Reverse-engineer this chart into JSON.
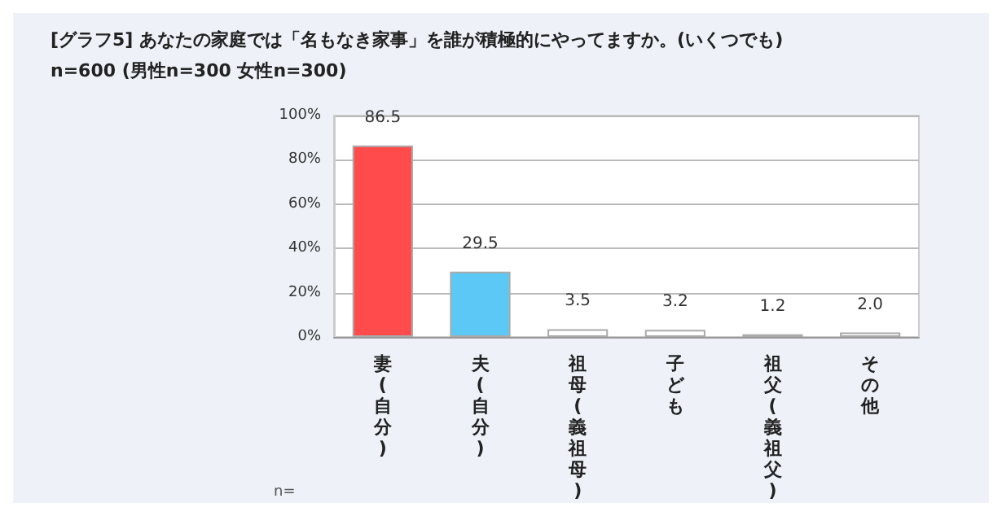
{
  "chart_data": {
    "type": "bar",
    "title": "[グラフ5] あなたの家庭では「名もなき家事」を誰が積極的にやってますか。(いくつでも)",
    "subtitle": "n=600 (男性n=300 女性n=300)",
    "categories": [
      "妻(自分)",
      "夫(自分)",
      "祖母(義祖母)",
      "子ども",
      "祖父(義祖父)",
      "その他"
    ],
    "values": [
      86.5,
      29.5,
      3.5,
      3.2,
      1.2,
      2.0
    ],
    "value_labels": [
      "86.5",
      "29.5",
      "3.5",
      "3.2",
      "1.2",
      "2.0"
    ],
    "colors": [
      "#ff4b4b",
      "#5bc8f5",
      "#ffffff",
      "#ffffff",
      "#ffffff",
      "#ffffff"
    ],
    "ylim": [
      0,
      100
    ],
    "yticks": [
      {
        "value": 0,
        "label": "0%"
      },
      {
        "value": 20,
        "label": "20%"
      },
      {
        "value": 40,
        "label": "40%"
      },
      {
        "value": 60,
        "label": "60%"
      },
      {
        "value": 80,
        "label": "80%"
      },
      {
        "value": 100,
        "label": "100%"
      }
    ],
    "grid": "y",
    "annotations": [
      "n="
    ]
  }
}
